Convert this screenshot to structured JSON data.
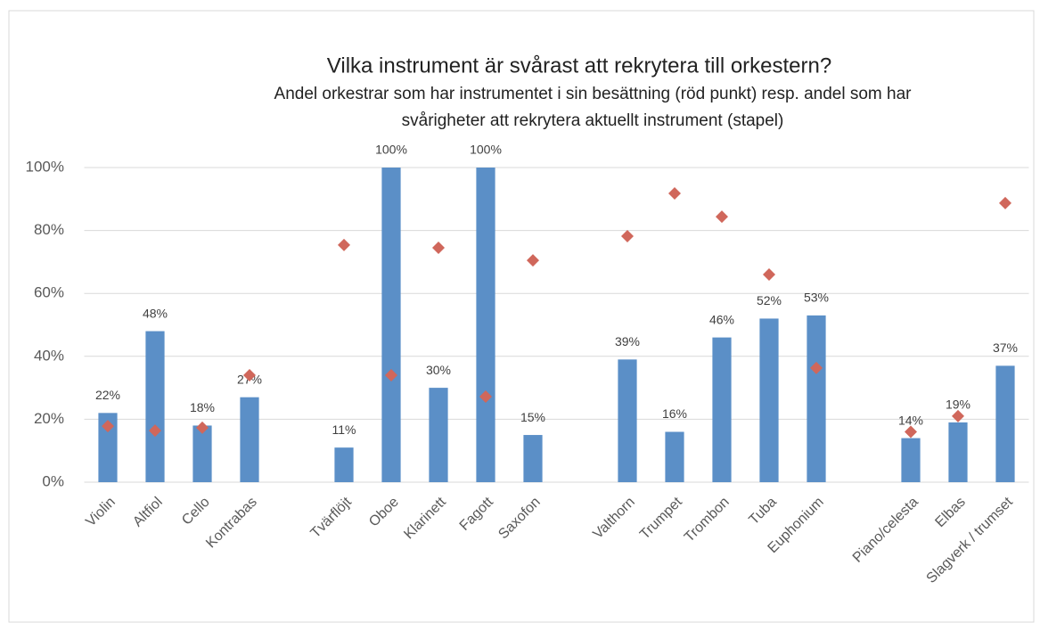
{
  "chart_data": {
    "type": "bar",
    "title": "Vilka instrument är svårast att rekrytera till orkestern?",
    "subtitle": [
      "Andel orkestrar som har instrumentet i sin besättning (röd punkt) resp. andel som har",
      "svårigheter att rekrytera aktuellt instrument (stapel)"
    ],
    "categories": [
      "Violin",
      "Altfiol",
      "Cello",
      "Kontrabas",
      null,
      "Tvärflöjt",
      "Oboe",
      "Klarinett",
      "Fagott",
      "Saxofon",
      null,
      "Valthorn",
      "Trumpet",
      "Trombon",
      "Tuba",
      "Euphonium",
      null,
      "Piano/celesta",
      "Elbas",
      "Slagverk / trumset"
    ],
    "series": [
      {
        "type": "bar",
        "color": "#5b8fc7",
        "values": [
          22,
          48,
          18,
          27,
          null,
          11,
          100,
          30,
          100,
          15,
          null,
          39,
          16,
          46,
          52,
          53,
          null,
          14,
          19,
          37
        ],
        "value_labels": [
          "22%",
          "48%",
          "18%",
          "27%",
          null,
          "11%",
          "100%",
          "30%",
          "100%",
          "15%",
          null,
          "39%",
          "16%",
          "46%",
          "52%",
          "53%",
          null,
          "14%",
          "19%",
          "37%"
        ]
      },
      {
        "type": "scatter",
        "marker": "diamond",
        "color": "#d0675b",
        "values": [
          17.8,
          16.4,
          17.3,
          34,
          null,
          75.4,
          34,
          74.5,
          27.2,
          70.5,
          null,
          78.2,
          91.8,
          84.4,
          66,
          36.3,
          null,
          16,
          21,
          88.7
        ]
      }
    ],
    "ylim": [
      0,
      100
    ],
    "yticks": [
      {
        "value": 0,
        "label": "0%"
      },
      {
        "value": 20,
        "label": "20%"
      },
      {
        "value": 40,
        "label": "40%"
      },
      {
        "value": 60,
        "label": "60%"
      },
      {
        "value": 80,
        "label": "80%"
      },
      {
        "value": 100,
        "label": "100%"
      }
    ],
    "grid": true
  }
}
